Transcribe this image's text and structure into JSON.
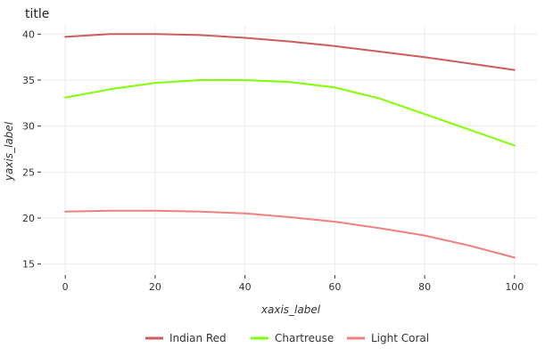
{
  "chart_data": {
    "type": "line",
    "title": "title",
    "xlabel": "xaxis_label",
    "ylabel": "yaxis_label",
    "xlim": [
      -5,
      105
    ],
    "ylim": [
      14,
      41
    ],
    "x_ticks": [
      0,
      20,
      40,
      60,
      80,
      100
    ],
    "y_ticks": [
      15,
      20,
      25,
      30,
      35,
      40
    ],
    "grid": true,
    "legend_position": "bottom",
    "x": [
      0,
      10,
      20,
      30,
      40,
      50,
      60,
      70,
      80,
      90,
      100
    ],
    "series": [
      {
        "name": "Indian Red",
        "color": "#cd5c5c",
        "values": [
          39.7,
          40.0,
          40.0,
          39.9,
          39.6,
          39.2,
          38.7,
          38.1,
          37.5,
          36.8,
          36.1
        ]
      },
      {
        "name": "Chartreuse",
        "color": "#7fff00",
        "values": [
          33.1,
          34.0,
          34.7,
          35.0,
          35.0,
          34.8,
          34.2,
          33.0,
          31.3,
          29.6,
          27.9
        ]
      },
      {
        "name": "Light Coral",
        "color": "#f08080",
        "values": [
          20.7,
          20.8,
          20.8,
          20.7,
          20.5,
          20.1,
          19.6,
          18.9,
          18.1,
          17.0,
          15.7
        ]
      }
    ]
  }
}
